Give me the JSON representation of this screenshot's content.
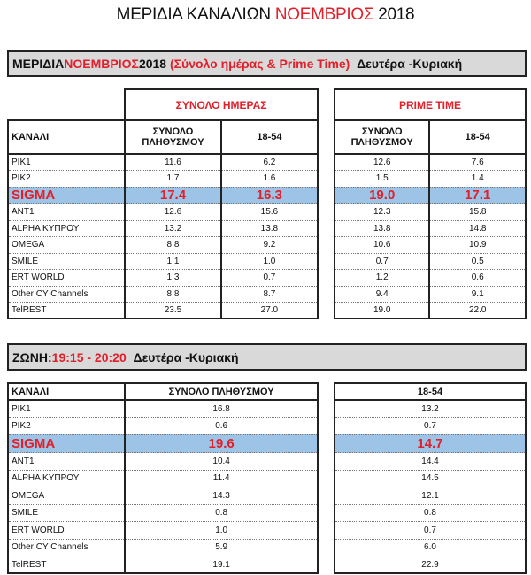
{
  "title": {
    "a": "ΜΕΡΙΔΙΑ ΚΑΝΑΛΙΩΝ ",
    "b": "ΝΟΕΜΒΡΙΟΣ",
    "c": " 2018"
  },
  "section1": {
    "t1": "ΜΕΡΙΔΙΑ ",
    "t2": "ΝΟΕΜΒΡΙΟΣ",
    "t3": " 2018 ",
    "t4": "(Σύνολο ημέρας & Prime Time)",
    "t5": "Δευτέρα -Κυριακή",
    "group_day": "ΣΥΝΟΛΟ ΗΜΕΡΑΣ",
    "group_prime": "PRIME TIME",
    "col_channel": "ΚΑΝΑΛΙ",
    "col_total": "ΣΥΝΟΛΟ ΠΛΗΘΥΣΜΟΥ",
    "col_age": "18-54",
    "rows": [
      [
        "ΡΙΚ1",
        "11.6",
        "6.2",
        "12.6",
        "7.6"
      ],
      [
        "ΡΙΚ2",
        "1.7",
        "1.6",
        "1.5",
        "1.4"
      ],
      [
        "SIGMA",
        "17.4",
        "16.3",
        "19.0",
        "17.1"
      ],
      [
        "ANT1",
        "12.6",
        "15.6",
        "12.3",
        "15.8"
      ],
      [
        "ALPHA ΚΥΠΡΟΥ",
        "13.2",
        "13.8",
        "13.8",
        "14.8"
      ],
      [
        "OMEGA",
        "8.8",
        "9.2",
        "10.6",
        "10.9"
      ],
      [
        "SMILE",
        "1.1",
        "1.0",
        "0.7",
        "0.5"
      ],
      [
        "ERT WORLD",
        "1.3",
        "0.7",
        "1.2",
        "0.6"
      ],
      [
        "Other CY Channels",
        "8.8",
        "8.7",
        "9.4",
        "9.1"
      ],
      [
        "TelREST",
        "23.5",
        "27.0",
        "19.0",
        "22.0"
      ]
    ]
  },
  "section2": {
    "t1": "ΖΩΝΗ: ",
    "t2": "19:15 - 20:20",
    "t3": "Δευτέρα -Κυριακή",
    "col_channel": "ΚΑΝΑΛΙ",
    "col_total": "ΣΥΝΟΛΟ ΠΛΗΘΥΣΜΟΥ",
    "col_age": "18-54",
    "rows": [
      [
        "ΡΙΚ1",
        "16.8",
        "13.2"
      ],
      [
        "ΡΙΚ2",
        "0.6",
        "0.7"
      ],
      [
        "SIGMA",
        "19.6",
        "14.7"
      ],
      [
        "ANT1",
        "10.4",
        "14.4"
      ],
      [
        "ALPHA ΚΥΠΡΟΥ",
        "11.4",
        "14.5"
      ],
      [
        "OMEGA",
        "14.3",
        "12.1"
      ],
      [
        "SMILE",
        "0.8",
        "0.8"
      ],
      [
        "ERT WORLD",
        "1.0",
        "0.7"
      ],
      [
        "Other CY Channels",
        "5.9",
        "6.0"
      ],
      [
        "TelREST",
        "19.1",
        "22.9"
      ]
    ]
  },
  "highlight_row": "SIGMA",
  "colors": {
    "accent": "#e0202a",
    "highlight": "#9dc3e6",
    "bar": "#d9d9d9"
  }
}
